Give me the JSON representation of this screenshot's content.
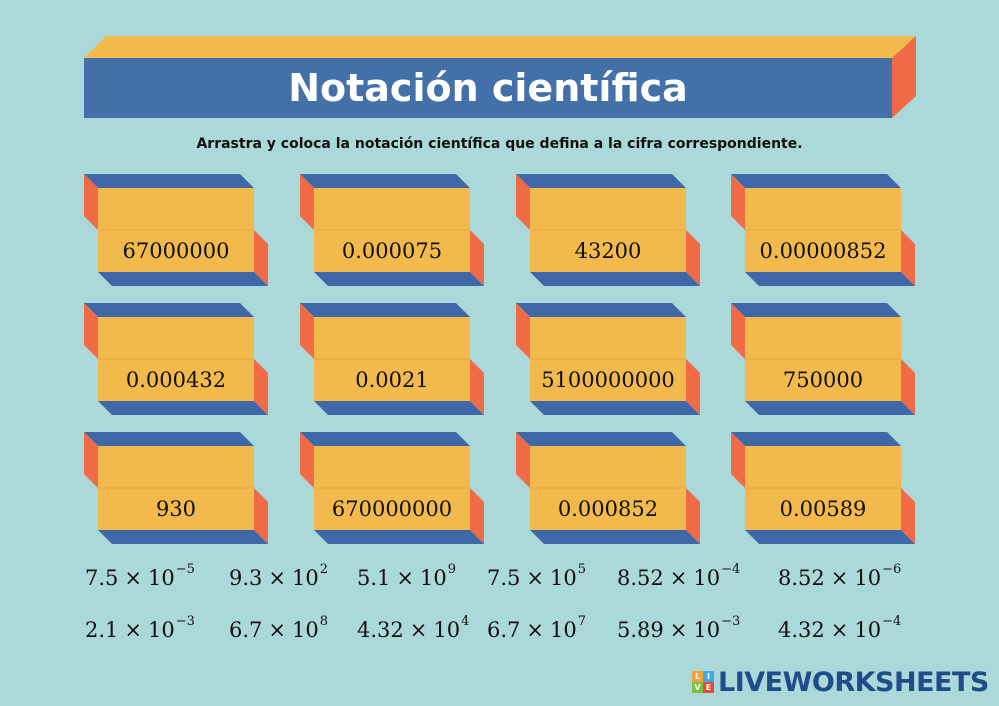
{
  "header": {
    "title": "Notación científica",
    "instructions": "Arrastra y coloca la notación científica que defina a la cifra correspondiente."
  },
  "colors": {
    "background": "#abd8d8",
    "face_yellow": "#f2b94c",
    "side_blue": "#3f68a8",
    "side_orange": "#ef6a45",
    "title_blue": "#4370a8"
  },
  "cards": [
    {
      "number": "67000000"
    },
    {
      "number": "0.000075"
    },
    {
      "number": "43200"
    },
    {
      "number": "0.00000852"
    },
    {
      "number": "0.000432"
    },
    {
      "number": "0.0021"
    },
    {
      "number": "5100000000"
    },
    {
      "number": "750000"
    },
    {
      "number": "930"
    },
    {
      "number": "670000000"
    },
    {
      "number": "0.000852"
    },
    {
      "number": "0.00589"
    }
  ],
  "answers": [
    {
      "mantissa": "7.5",
      "times": "×",
      "base": "10",
      "exponent": "−5"
    },
    {
      "mantissa": "9.3",
      "times": "×",
      "base": "10",
      "exponent": "2"
    },
    {
      "mantissa": "5.1",
      "times": "×",
      "base": "10",
      "exponent": "9"
    },
    {
      "mantissa": "7.5",
      "times": "×",
      "base": "10",
      "exponent": "5"
    },
    {
      "mantissa": "8.52",
      "times": "×",
      "base": "10",
      "exponent": "−4"
    },
    {
      "mantissa": "8.52",
      "times": "×",
      "base": "10",
      "exponent": "−6"
    },
    {
      "mantissa": "2.1",
      "times": "×",
      "base": "10",
      "exponent": "−3"
    },
    {
      "mantissa": "6.7",
      "times": "×",
      "base": "10",
      "exponent": "8"
    },
    {
      "mantissa": "4.32",
      "times": "×",
      "base": "10",
      "exponent": "4"
    },
    {
      "mantissa": "6.7",
      "times": "×",
      "base": "10",
      "exponent": "7"
    },
    {
      "mantissa": "5.89",
      "times": "×",
      "base": "10",
      "exponent": "−3"
    },
    {
      "mantissa": "4.32",
      "times": "×",
      "base": "10",
      "exponent": "−4"
    }
  ],
  "logo": {
    "text": "LIVEWORKSHEETS",
    "mark_letters": [
      "L",
      "I",
      "V",
      "E"
    ],
    "mark_colors": [
      "#f2a23a",
      "#3fa9e0",
      "#7ac143",
      "#e8473b"
    ]
  }
}
